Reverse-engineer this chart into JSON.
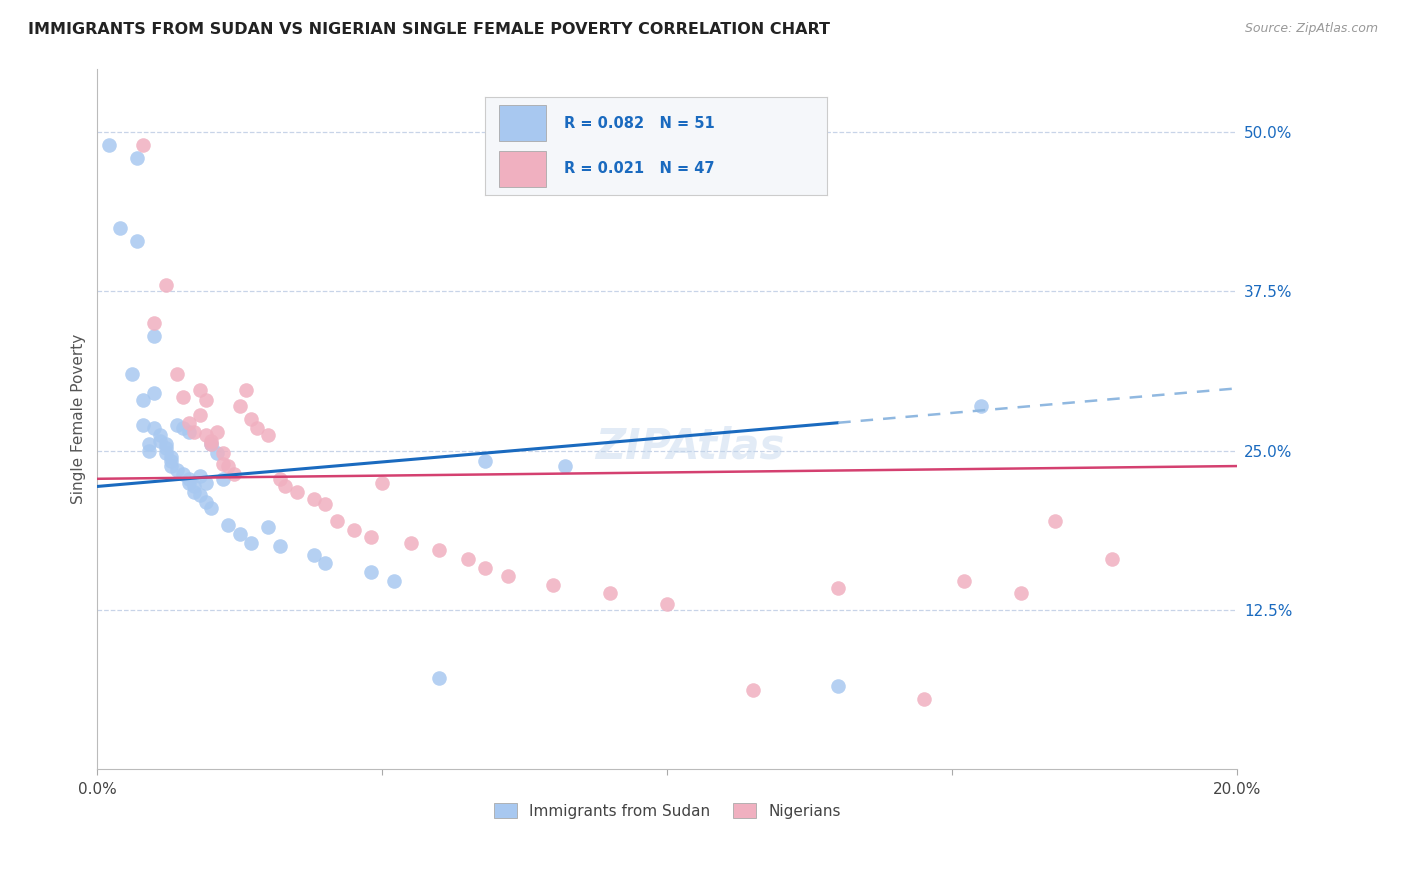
{
  "title": "IMMIGRANTS FROM SUDAN VS NIGERIAN SINGLE FEMALE POVERTY CORRELATION CHART",
  "source": "Source: ZipAtlas.com",
  "ylabel": "Single Female Poverty",
  "yticks": [
    "50.0%",
    "37.5%",
    "25.0%",
    "12.5%"
  ],
  "ytick_vals": [
    0.5,
    0.375,
    0.25,
    0.125
  ],
  "xlim": [
    0.0,
    0.2
  ],
  "ylim": [
    0.0,
    0.55
  ],
  "legend_labels": [
    "Immigrants from Sudan",
    "Nigerians"
  ],
  "color_blue": "#a8c8f0",
  "color_pink": "#f0b0c0",
  "color_line_blue": "#1a6abf",
  "color_line_pink": "#d44070",
  "color_line_dashed": "#90b8e0",
  "background_color": "#ffffff",
  "grid_color": "#c8d4e8",
  "sudan_x": [
    0.002,
    0.004,
    0.006,
    0.007,
    0.007,
    0.008,
    0.008,
    0.009,
    0.009,
    0.01,
    0.01,
    0.01,
    0.011,
    0.011,
    0.012,
    0.012,
    0.012,
    0.013,
    0.013,
    0.013,
    0.014,
    0.014,
    0.015,
    0.015,
    0.016,
    0.016,
    0.016,
    0.017,
    0.017,
    0.018,
    0.018,
    0.019,
    0.019,
    0.02,
    0.02,
    0.021,
    0.022,
    0.023,
    0.025,
    0.027,
    0.03,
    0.032,
    0.038,
    0.04,
    0.048,
    0.052,
    0.06,
    0.068,
    0.082,
    0.13,
    0.155
  ],
  "sudan_y": [
    0.49,
    0.425,
    0.31,
    0.48,
    0.415,
    0.29,
    0.27,
    0.255,
    0.25,
    0.34,
    0.295,
    0.268,
    0.262,
    0.258,
    0.255,
    0.252,
    0.248,
    0.245,
    0.242,
    0.238,
    0.27,
    0.235,
    0.268,
    0.232,
    0.265,
    0.228,
    0.225,
    0.222,
    0.218,
    0.23,
    0.215,
    0.225,
    0.21,
    0.255,
    0.205,
    0.248,
    0.228,
    0.192,
    0.185,
    0.178,
    0.19,
    0.175,
    0.168,
    0.162,
    0.155,
    0.148,
    0.072,
    0.242,
    0.238,
    0.065,
    0.285
  ],
  "nigeria_x": [
    0.008,
    0.01,
    0.012,
    0.014,
    0.015,
    0.016,
    0.017,
    0.018,
    0.018,
    0.019,
    0.019,
    0.02,
    0.02,
    0.021,
    0.022,
    0.022,
    0.023,
    0.024,
    0.025,
    0.026,
    0.027,
    0.028,
    0.03,
    0.032,
    0.033,
    0.035,
    0.038,
    0.04,
    0.042,
    0.045,
    0.048,
    0.05,
    0.055,
    0.06,
    0.065,
    0.068,
    0.072,
    0.08,
    0.09,
    0.1,
    0.115,
    0.13,
    0.145,
    0.152,
    0.162,
    0.168,
    0.178
  ],
  "nigeria_y": [
    0.49,
    0.35,
    0.38,
    0.31,
    0.292,
    0.272,
    0.265,
    0.298,
    0.278,
    0.29,
    0.262,
    0.258,
    0.255,
    0.265,
    0.24,
    0.248,
    0.238,
    0.232,
    0.285,
    0.298,
    0.275,
    0.268,
    0.262,
    0.228,
    0.222,
    0.218,
    0.212,
    0.208,
    0.195,
    0.188,
    0.182,
    0.225,
    0.178,
    0.172,
    0.165,
    0.158,
    0.152,
    0.145,
    0.138,
    0.13,
    0.062,
    0.142,
    0.055,
    0.148,
    0.138,
    0.195,
    0.165
  ],
  "line_blue_x0": 0.0,
  "line_blue_y0": 0.222,
  "line_blue_x1": 0.13,
  "line_blue_y1": 0.272,
  "line_dashed_x0": 0.13,
  "line_dashed_y0": 0.272,
  "line_dashed_x1": 0.2,
  "line_dashed_y1": 0.299,
  "line_pink_x0": 0.0,
  "line_pink_y0": 0.228,
  "line_pink_x1": 0.2,
  "line_pink_y1": 0.238
}
